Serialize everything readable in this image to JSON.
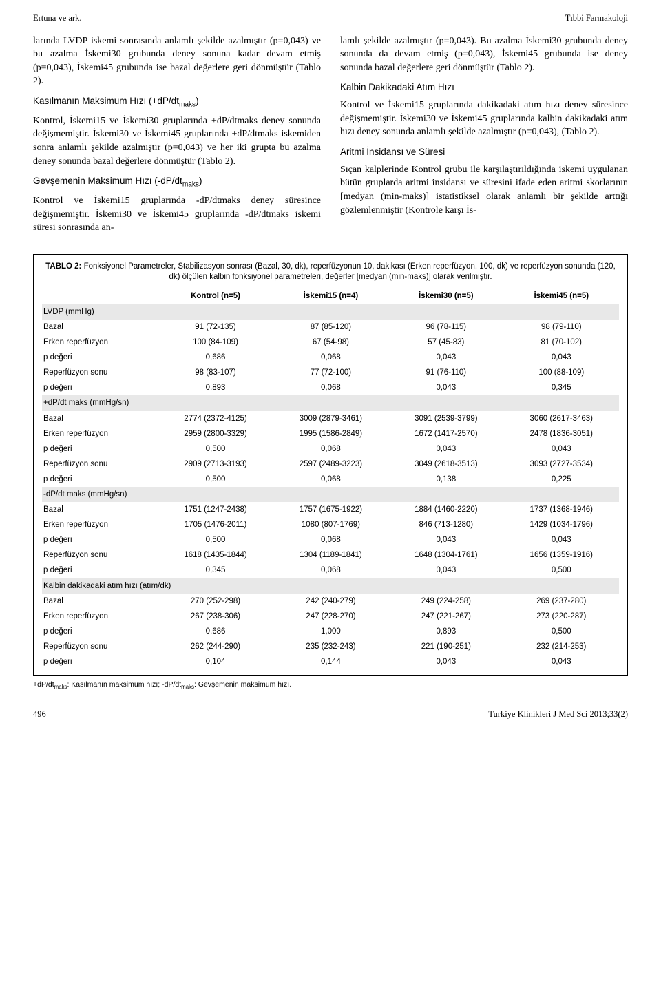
{
  "header": {
    "left": "Ertuna ve ark.",
    "right": "Tıbbi Farmakoloji"
  },
  "left_col": {
    "p1": "larında LVDP iskemi sonrasında anlamlı şekilde azalmıştır (p=0,043) ve bu azalma İskemi30 grubunda deney sonuna kadar devam etmiş (p=0,043), İskemi45 grubunda ise bazal değerlere geri dönmüştür (Tablo 2).",
    "h1_a": "Kasılmanın Maksimum Hızı (+dP/dt",
    "h1_b": ")",
    "p2": "Kontrol, İskemi15 ve İskemi30 gruplarında +dP/dtmaks deney sonunda değişmemiştir. İskemi30 ve İskemi45 gruplarında +dP/dtmaks iskemiden sonra anlamlı şekilde azalmıştır (p=0,043) ve her iki grupta bu azalma deney sonunda bazal değerlere dönmüştür (Tablo 2).",
    "h2_a": "Gevşemenin Maksimum Hızı (-dP/dt",
    "h2_b": ")",
    "p3": "Kontrol ve İskemi15 gruplarında -dP/dtmaks deney süresince değişmemiştir. İskemi30 ve İskemi45 gruplarında -dP/dtmaks iskemi süresi sonrasında an-"
  },
  "right_col": {
    "p1": "lamlı şekilde azalmıştır (p=0,043). Bu azalma İskemi30 grubunda deney sonunda da devam etmiş (p=0,043), İskemi45 grubunda ise deney sonunda bazal değerlere geri dönmüştür (Tablo 2).",
    "h1": "Kalbin Dakikadaki Atım Hızı",
    "p2": "Kontrol ve İskemi15 gruplarında dakikadaki atım hızı deney süresince değişmemiştir. İskemi30 ve İskemi45 gruplarında kalbin dakikadaki atım hızı deney sonunda anlamlı şekilde azalmıştır (p=0,043), (Tablo 2).",
    "h2": "Aritmi İnsidansı ve Süresi",
    "p3": "Sıçan kalplerinde Kontrol grubu ile karşılaştırıldığında iskemi uygulanan bütün gruplarda aritmi insidansı ve süresini ifade eden aritmi skorlarının [medyan (min-maks)] istatistiksel olarak anlamlı bir şekilde arttığı gözlemlenmiştir (Kontrole karşı İs-"
  },
  "table": {
    "title_label": "TABLO 2:",
    "title_text": " Fonksiyonel Parametreler, Stabilizasyon sonrası (Bazal, 30, dk), reperfüzyonun 10, dakikası (Erken reperfüzyon, 100, dk) ve reperfüzyon sonunda (120, dk) ölçülen kalbin fonksiyonel parametreleri, değerler [medyan (min-maks)] olarak verilmiştir.",
    "columns": [
      "",
      "Kontrol (n=5)",
      "İskemi15 (n=4)",
      "İskemi30 (n=5)",
      "İskemi45 (n=5)"
    ],
    "sections": [
      {
        "title": "LVDP (mmHg)",
        "rows": [
          [
            "Bazal",
            "91 (72-135)",
            "87 (85-120)",
            "96 (78-115)",
            "98 (79-110)"
          ],
          [
            "Erken reperfüzyon",
            "100 (84-109)",
            "67 (54-98)",
            "57 (45-83)",
            "81 (70-102)"
          ],
          [
            "p değeri",
            "0,686",
            "0,068",
            "0,043",
            "0,043"
          ],
          [
            "Reperfüzyon sonu",
            "98 (83-107)",
            "77 (72-100)",
            "91 (76-110)",
            "100 (88-109)"
          ],
          [
            "p değeri",
            "0,893",
            "0,068",
            "0,043",
            "0,345"
          ]
        ]
      },
      {
        "title": "+dP/dt maks (mmHg/sn)",
        "rows": [
          [
            "Bazal",
            "2774 (2372-4125)",
            "3009 (2879-3461)",
            "3091 (2539-3799)",
            "3060 (2617-3463)"
          ],
          [
            "Erken reperfüzyon",
            "2959 (2800-3329)",
            "1995 (1586-2849)",
            "1672 (1417-2570)",
            "2478 (1836-3051)"
          ],
          [
            "p değeri",
            "0,500",
            "0,068",
            "0,043",
            "0,043"
          ],
          [
            "Reperfüzyon sonu",
            "2909 (2713-3193)",
            "2597 (2489-3223)",
            "3049 (2618-3513)",
            "3093 (2727-3534)"
          ],
          [
            "p değeri",
            "0,500",
            "0,068",
            "0,138",
            "0,225"
          ]
        ]
      },
      {
        "title": "-dP/dt maks (mmHg/sn)",
        "rows": [
          [
            "Bazal",
            "1751 (1247-2438)",
            "1757 (1675-1922)",
            "1884 (1460-2220)",
            "1737 (1368-1946)"
          ],
          [
            "Erken reperfüzyon",
            "1705 (1476-2011)",
            "1080 (807-1769)",
            "846 (713-1280)",
            "1429 (1034-1796)"
          ],
          [
            "p değeri",
            "0,500",
            "0,068",
            "0,043",
            "0,043"
          ],
          [
            "Reperfüzyon sonu",
            "1618 (1435-1844)",
            "1304 (1189-1841)",
            "1648 (1304-1761)",
            "1656 (1359-1916)"
          ],
          [
            "p değeri",
            "0,345",
            "0,068",
            "0,043",
            "0,500"
          ]
        ]
      },
      {
        "title": "Kalbin dakikadaki atım hızı (atım/dk)",
        "rows": [
          [
            "Bazal",
            "270 (252-298)",
            "242 (240-279)",
            "249 (224-258)",
            "269 (237-280)"
          ],
          [
            "Erken reperfüzyon",
            "267 (238-306)",
            "247 (228-270)",
            "247 (221-267)",
            "273 (220-287)"
          ],
          [
            "p değeri",
            "0,686",
            "1,000",
            "0,893",
            "0,500"
          ],
          [
            "Reperfüzyon sonu",
            "262 (244-290)",
            "235 (232-243)",
            "221 (190-251)",
            "232 (214-253)"
          ],
          [
            "p değeri",
            "0,104",
            "0,144",
            "0,043",
            "0,043"
          ]
        ]
      }
    ]
  },
  "footnote_a": "+dP/dt",
  "footnote_b": ": Kasılmanın maksimum hızı; -dP/dt",
  "footnote_c": ": Gevşemenin maksimum hızı.",
  "sub_maks": "maks",
  "footer": {
    "page": "496",
    "journal": "Turkiye Klinikleri J Med Sci 2013;33(2)"
  }
}
